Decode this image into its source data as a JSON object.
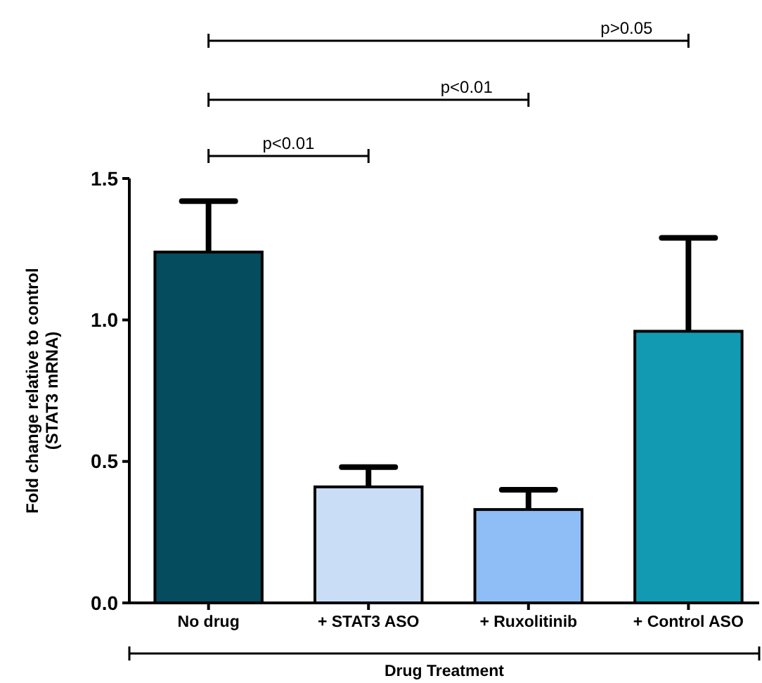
{
  "chart_data": {
    "type": "bar",
    "xlabel": "Drug Treatment",
    "ylabel": "Fold change relative to control\n(STAT3 mRNA)",
    "categories": [
      "No drug",
      "+ STAT3 ASO",
      "+ Ruxolitinib",
      "+ Control ASO"
    ],
    "values": [
      1.24,
      0.41,
      0.33,
      0.96
    ],
    "colors": [
      "#044c5e",
      "#c9def6",
      "#8fbef6",
      "#119ab2"
    ],
    "errors": [
      0.18,
      0.07,
      0.07,
      0.33
    ],
    "ylim": [
      0,
      1.5
    ],
    "yticks": [
      {
        "value": 0,
        "label": "0.0"
      },
      {
        "value": 0.5,
        "label": "0.5"
      },
      {
        "value": 1,
        "label": "1.0"
      },
      {
        "value": 1.5,
        "label": "1.5"
      }
    ],
    "annotations": [
      "p<0.01",
      "p<0.01",
      "p>0.05"
    ]
  }
}
